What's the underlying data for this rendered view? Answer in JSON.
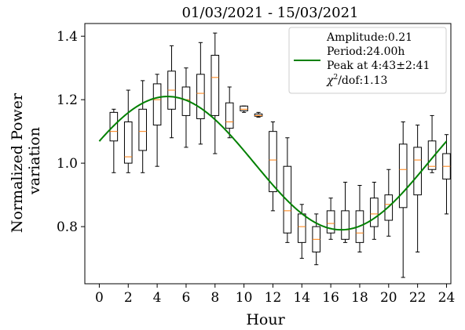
{
  "chart_data": {
    "type": "box",
    "title": "01/03/2021 - 15/03/2021",
    "xlabel": "Hour",
    "ylabel": "Normalized Power variation",
    "xlim": [
      -1,
      24.3
    ],
    "ylim": [
      0.62,
      1.44
    ],
    "xticks": [
      0,
      2,
      4,
      6,
      8,
      10,
      12,
      14,
      16,
      18,
      20,
      22,
      24
    ],
    "yticks": [
      0.8,
      1.0,
      1.2,
      1.4
    ],
    "grid": false,
    "legend_position": "top-right",
    "legend": {
      "lines": [
        "Amplitude:0.21",
        "Period:24.00h",
        "Peak at 4:43±2:41",
        "/dof:1.13"
      ],
      "chi_symbol": "χ",
      "chi_superscript": "2",
      "line_color": "#008000"
    },
    "box_color": "#000000",
    "median_color": "#ff7f0e",
    "fit": {
      "name": "sinusoidal fit",
      "color": "#008000",
      "mean": 1.0,
      "amplitude": 0.21,
      "period": 24.0,
      "peak_hour": 4.72,
      "x_range": [
        0,
        24
      ]
    },
    "boxes": [
      {
        "hour": 1,
        "whisker_low": 0.97,
        "q1": 1.07,
        "median": 1.1,
        "q3": 1.16,
        "whisker_high": 1.17
      },
      {
        "hour": 2,
        "whisker_low": 0.97,
        "q1": 1.0,
        "median": 1.02,
        "q3": 1.13,
        "whisker_high": 1.23
      },
      {
        "hour": 3,
        "whisker_low": 0.97,
        "q1": 1.04,
        "median": 1.1,
        "q3": 1.17,
        "whisker_high": 1.26
      },
      {
        "hour": 4,
        "whisker_low": 0.99,
        "q1": 1.12,
        "median": 1.2,
        "q3": 1.25,
        "whisker_high": 1.28
      },
      {
        "hour": 5,
        "whisker_low": 1.08,
        "q1": 1.17,
        "median": 1.23,
        "q3": 1.29,
        "whisker_high": 1.37
      },
      {
        "hour": 6,
        "whisker_low": 1.05,
        "q1": 1.15,
        "median": 1.2,
        "q3": 1.24,
        "whisker_high": 1.3
      },
      {
        "hour": 7,
        "whisker_low": 1.06,
        "q1": 1.14,
        "median": 1.22,
        "q3": 1.28,
        "whisker_high": 1.38
      },
      {
        "hour": 8,
        "whisker_low": 1.03,
        "q1": 1.15,
        "median": 1.27,
        "q3": 1.34,
        "whisker_high": 1.41
      },
      {
        "hour": 9,
        "whisker_low": 1.08,
        "q1": 1.11,
        "median": 1.13,
        "q3": 1.19,
        "whisker_high": 1.24
      },
      {
        "hour": 10,
        "whisker_low": 1.16,
        "q1": 1.165,
        "median": 1.17,
        "q3": 1.18,
        "whisker_high": 1.18
      },
      {
        "hour": 11,
        "whisker_low": 1.145,
        "q1": 1.148,
        "median": 1.15,
        "q3": 1.155,
        "whisker_high": 1.16
      },
      {
        "hour": 12,
        "whisker_low": 0.85,
        "q1": 0.91,
        "median": 1.01,
        "q3": 1.1,
        "whisker_high": 1.13
      },
      {
        "hour": 13,
        "whisker_low": 0.75,
        "q1": 0.78,
        "median": 0.85,
        "q3": 0.99,
        "whisker_high": 1.08
      },
      {
        "hour": 14,
        "whisker_low": 0.7,
        "q1": 0.75,
        "median": 0.8,
        "q3": 0.84,
        "whisker_high": 0.87
      },
      {
        "hour": 15,
        "whisker_low": 0.68,
        "q1": 0.72,
        "median": 0.76,
        "q3": 0.8,
        "whisker_high": 0.84
      },
      {
        "hour": 16,
        "whisker_low": 0.76,
        "q1": 0.78,
        "median": 0.81,
        "q3": 0.85,
        "whisker_high": 0.89
      },
      {
        "hour": 17,
        "whisker_low": 0.75,
        "q1": 0.76,
        "median": 0.79,
        "q3": 0.85,
        "whisker_high": 0.94
      },
      {
        "hour": 18,
        "whisker_low": 0.72,
        "q1": 0.75,
        "median": 0.78,
        "q3": 0.85,
        "whisker_high": 0.93
      },
      {
        "hour": 19,
        "whisker_low": 0.76,
        "q1": 0.8,
        "median": 0.84,
        "q3": 0.89,
        "whisker_high": 0.94
      },
      {
        "hour": 20,
        "whisker_low": 0.77,
        "q1": 0.82,
        "median": 0.87,
        "q3": 0.9,
        "whisker_high": 0.98
      },
      {
        "hour": 21,
        "whisker_low": 0.64,
        "q1": 0.86,
        "median": 0.98,
        "q3": 1.06,
        "whisker_high": 1.13
      },
      {
        "hour": 22,
        "whisker_low": 0.72,
        "q1": 0.9,
        "median": 1.01,
        "q3": 1.05,
        "whisker_high": 1.12
      },
      {
        "hour": 23,
        "whisker_low": 0.97,
        "q1": 0.98,
        "median": 0.99,
        "q3": 1.07,
        "whisker_high": 1.15
      },
      {
        "hour": 24,
        "whisker_low": 0.84,
        "q1": 0.95,
        "median": 0.99,
        "q3": 1.03,
        "whisker_high": 1.09
      }
    ]
  }
}
